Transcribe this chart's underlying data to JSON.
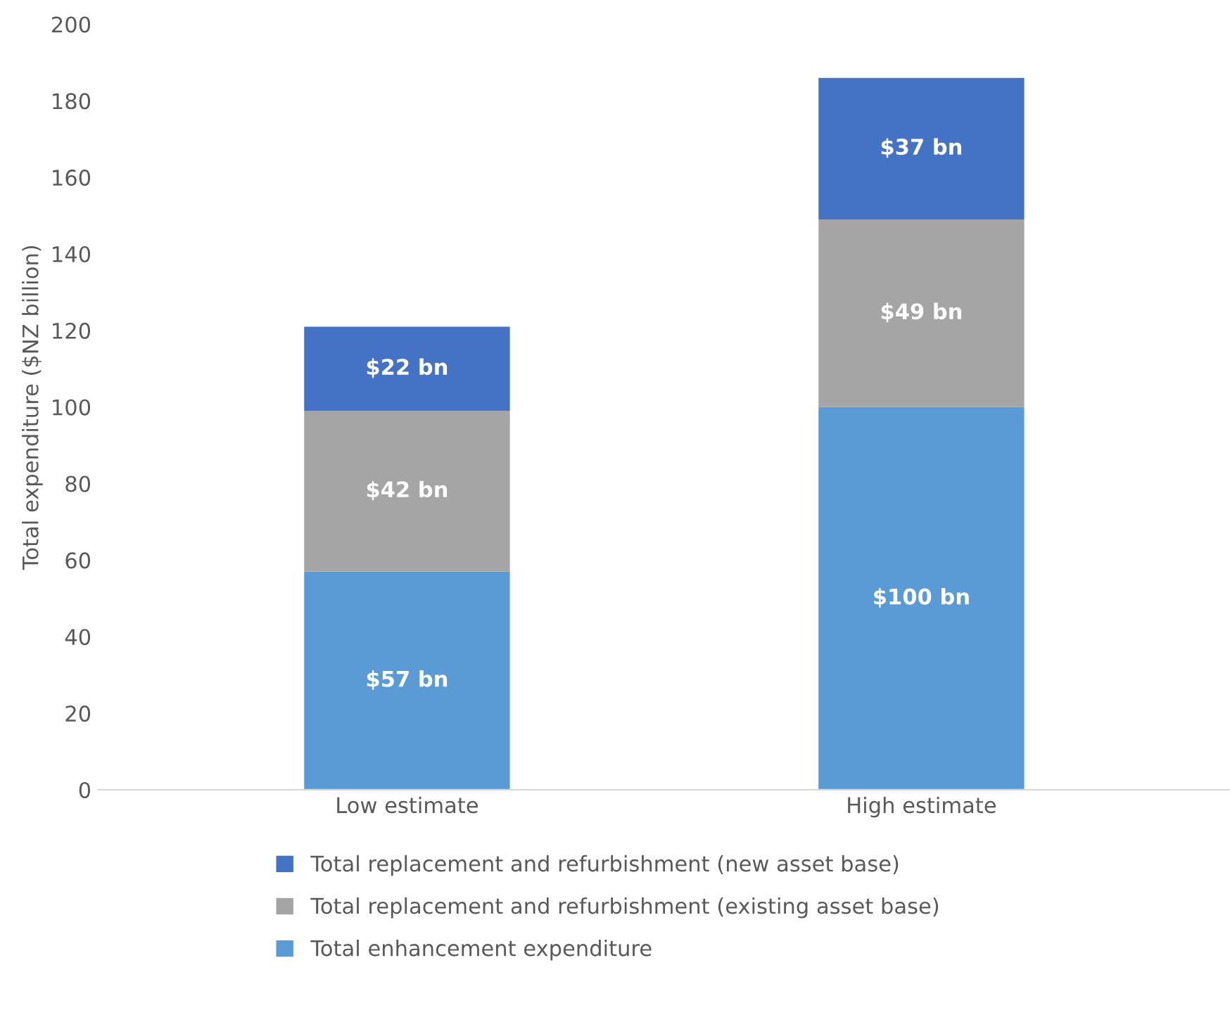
{
  "chart_data": {
    "type": "bar",
    "stacked": true,
    "ylabel": "Total expenditure ($NZ billion)",
    "categories": [
      "Low estimate",
      "High estimate"
    ],
    "series": [
      {
        "name": "Total enhancement expenditure",
        "color": "#5b9bd5",
        "values": [
          57,
          100
        ],
        "value_labels": [
          "$57 bn",
          "$100 bn"
        ]
      },
      {
        "name": "Total replacement and refurbishment (existing asset base)",
        "color": "#a5a5a5",
        "values": [
          42,
          49
        ],
        "value_labels": [
          "$42 bn",
          "$49 bn"
        ]
      },
      {
        "name": "Total replacement and refurbishment (new asset base)",
        "color": "#4472c4",
        "values": [
          22,
          37
        ],
        "value_labels": [
          "$22 bn",
          "$37 bn"
        ]
      }
    ],
    "ylim": [
      0,
      200
    ],
    "yticks": [
      0,
      20,
      40,
      60,
      80,
      100,
      120,
      140,
      160,
      180,
      200
    ],
    "grid": false,
    "legend": "bottom"
  }
}
